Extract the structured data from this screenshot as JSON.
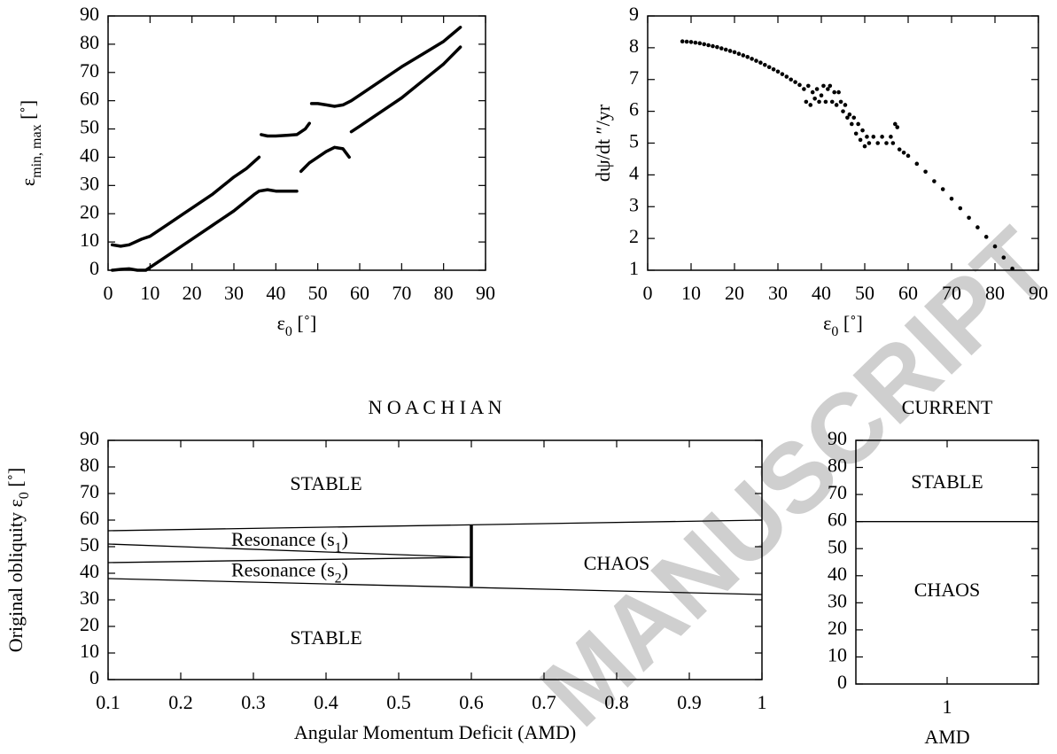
{
  "watermark": "MANUSCRIPT",
  "chart_data": [
    {
      "type": "line",
      "xlabel": [
        "ε",
        "0",
        " [˚]"
      ],
      "ylabel": [
        "ε",
        "min, max",
        " [˚]"
      ],
      "xlim": [
        0,
        90
      ],
      "ylim": [
        0,
        90
      ],
      "xticks": [
        0,
        10,
        20,
        30,
        40,
        50,
        60,
        70,
        80,
        90
      ],
      "yticks": [
        0,
        10,
        20,
        30,
        40,
        50,
        60,
        70,
        80,
        90
      ],
      "series": [
        {
          "color": "#000000",
          "x": [
            1,
            3,
            5,
            8,
            10,
            13,
            15,
            18,
            20,
            25,
            30,
            33,
            36,
            36.2,
            36.5,
            38,
            40,
            43,
            45,
            47,
            48,
            48.2,
            48.5,
            50,
            52,
            54,
            56,
            58,
            60,
            65,
            70,
            75,
            80,
            84
          ],
          "values": [
            9,
            8.5,
            9,
            11,
            12,
            15,
            17,
            20,
            22,
            27,
            33,
            36,
            40,
            null,
            48,
            47.5,
            47.5,
            47.8,
            48,
            50,
            52,
            null,
            59,
            59,
            58.5,
            58,
            58.5,
            60,
            62,
            67,
            72,
            76.5,
            81,
            86
          ]
        },
        {
          "color": "#000000",
          "x": [
            1,
            3,
            5,
            7,
            9,
            10,
            12,
            15,
            18,
            20,
            25,
            30,
            35,
            36,
            38,
            40,
            43,
            45,
            45.5,
            46,
            48,
            50,
            52,
            54,
            56,
            57.5,
            57.8,
            58,
            60,
            65,
            70,
            75,
            80,
            84
          ],
          "values": [
            0,
            0.3,
            0.5,
            0,
            0,
            1,
            3,
            6,
            9,
            11,
            16,
            21,
            27,
            28,
            28.5,
            28,
            28,
            28,
            null,
            35,
            38,
            40,
            42,
            43.5,
            43,
            40,
            null,
            49,
            51,
            56,
            61,
            67,
            73,
            79
          ]
        }
      ]
    },
    {
      "type": "scatter",
      "xlabel": [
        "ε",
        "0",
        " [˚]"
      ],
      "ylabel": "dψ/dt ″/yr",
      "xlim": [
        0,
        90
      ],
      "ylim": [
        1,
        9
      ],
      "xticks": [
        0,
        10,
        20,
        30,
        40,
        50,
        60,
        70,
        80,
        90
      ],
      "yticks": [
        1,
        2,
        3,
        4,
        5,
        6,
        7,
        8,
        9
      ],
      "color": "#000000",
      "x": [
        8,
        9,
        10,
        11,
        12,
        13,
        14,
        15,
        16,
        17,
        18,
        19,
        20,
        21,
        22,
        23,
        24,
        25,
        26,
        27,
        28,
        29,
        30,
        31,
        32,
        33,
        34,
        35,
        36,
        36.5,
        37,
        37.5,
        38,
        38.5,
        39,
        39.5,
        40,
        40.5,
        41,
        41.5,
        42,
        42.5,
        43,
        43.5,
        44,
        44.5,
        45,
        45.5,
        46,
        46.5,
        47,
        47.5,
        48,
        48.5,
        49,
        49.5,
        50,
        50.5,
        51,
        52,
        53,
        54,
        55,
        56,
        56.5,
        57,
        57.5,
        58,
        59,
        60,
        62,
        64,
        66,
        68,
        70,
        72,
        74,
        76,
        78,
        80,
        82,
        84
      ],
      "values": [
        8.2,
        8.19,
        8.18,
        8.16,
        8.14,
        8.11,
        8.08,
        8.05,
        8.02,
        7.98,
        7.94,
        7.9,
        7.86,
        7.81,
        7.76,
        7.71,
        7.65,
        7.59,
        7.53,
        7.46,
        7.39,
        7.32,
        7.25,
        7.17,
        7.09,
        7.0,
        6.92,
        6.83,
        6.7,
        6.3,
        6.8,
        6.2,
        6.6,
        6.4,
        6.7,
        6.3,
        6.5,
        6.8,
        6.3,
        6.7,
        6.8,
        6.3,
        6.6,
        6.2,
        6.6,
        6.3,
        6.0,
        6.2,
        5.8,
        5.9,
        5.6,
        5.8,
        5.3,
        5.6,
        5.1,
        5.4,
        4.9,
        5.2,
        5.0,
        5.2,
        5.0,
        5.2,
        5.0,
        5.2,
        5.0,
        5.6,
        5.5,
        4.8,
        4.7,
        4.6,
        4.35,
        4.1,
        3.8,
        3.55,
        3.25,
        2.95,
        2.65,
        2.35,
        2.05,
        1.75,
        1.4,
        1.05
      ]
    },
    {
      "type": "regions",
      "title": "N O A C H I A N",
      "xlabel": "Angular Momentum Deficit (AMD)",
      "ylabel": [
        "Original obliquity ε",
        "0",
        " [˚]"
      ],
      "xlim": [
        0.1,
        1
      ],
      "ylim": [
        0,
        90
      ],
      "xticks": [
        0.1,
        0.2,
        0.3,
        0.4,
        0.5,
        0.6,
        0.7,
        0.8,
        0.9,
        1
      ],
      "yticks": [
        0,
        10,
        20,
        30,
        40,
        50,
        60,
        70,
        80,
        90
      ],
      "boundaries": [
        {
          "x": [
            0.1,
            1
          ],
          "y": [
            56,
            60
          ]
        },
        {
          "x": [
            0.1,
            0.6
          ],
          "y": [
            51,
            46
          ]
        },
        {
          "x": [
            0.1,
            0.6
          ],
          "y": [
            44,
            46
          ]
        },
        {
          "x": [
            0.1,
            1
          ],
          "y": [
            38,
            32
          ]
        },
        {
          "x": [
            0.6,
            0.6
          ],
          "y": [
            35,
            58
          ]
        }
      ],
      "annotations": [
        {
          "text": "STABLE",
          "x": 0.4,
          "y": 73
        },
        {
          "text": [
            "Resonance (s",
            "1",
            ")"
          ],
          "x": 0.35,
          "y": 52
        },
        {
          "text": [
            "Resonance (s",
            "2",
            ")"
          ],
          "x": 0.35,
          "y": 40.5
        },
        {
          "text": "CHAOS",
          "x": 0.8,
          "y": 43
        },
        {
          "text": "STABLE",
          "x": 0.4,
          "y": 15
        }
      ]
    },
    {
      "type": "regions",
      "title": "CURRENT",
      "xlabel": "AMD",
      "categories": [
        "1"
      ],
      "ylim": [
        0,
        90
      ],
      "yticks": [
        0,
        10,
        20,
        30,
        40,
        50,
        60,
        70,
        80,
        90
      ],
      "boundaries": [
        {
          "y": [
            60,
            60
          ]
        }
      ],
      "annotations": [
        {
          "text": "STABLE",
          "y": 74
        },
        {
          "text": "CHAOS",
          "y": 34
        }
      ]
    }
  ]
}
